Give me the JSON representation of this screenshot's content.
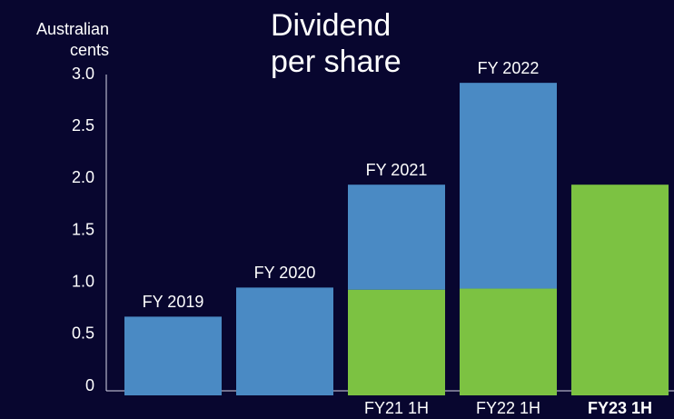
{
  "chart_data": {
    "type": "stacked_bar",
    "title": [
      "Dividend",
      "per share"
    ],
    "y_label": [
      "Australian",
      "cents"
    ],
    "categories": [
      null,
      null,
      "FY21 1H",
      "FY22 1H",
      "FY23 1H"
    ],
    "bar_labels": [
      "FY 2019",
      "FY 2020",
      "FY 2021",
      "FY 2022",
      null
    ],
    "series": [
      {
        "color": "#7cc242",
        "values": [
          0,
          0,
          0.93,
          0.94,
          1.94
        ]
      },
      {
        "color": "#4a8ac4",
        "values": [
          0.67,
          0.95,
          1.01,
          1.98,
          0
        ]
      }
    ],
    "ylim": [
      0,
      3
    ],
    "yticks": [
      0,
      0.5,
      {
        "value": 1,
        "label": "1.0"
      },
      1.5,
      {
        "value": 2,
        "label": "2.0"
      },
      2.5,
      {
        "value": 3,
        "label": "3.0"
      }
    ]
  }
}
